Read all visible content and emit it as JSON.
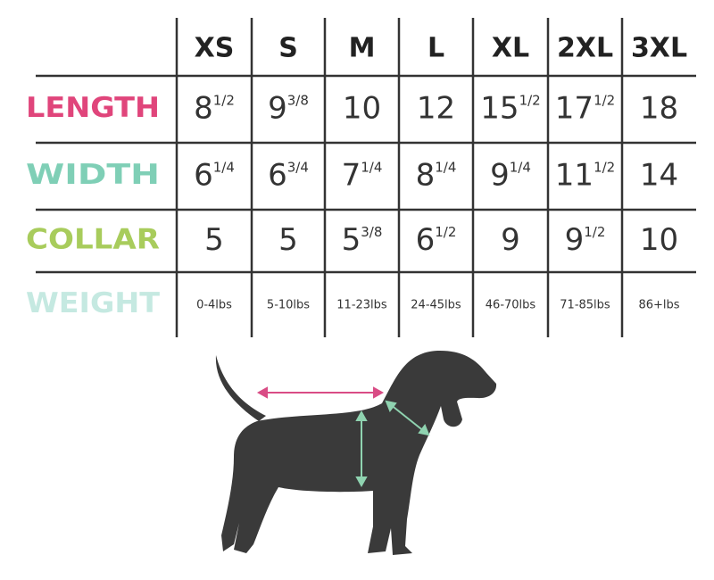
{
  "table": {
    "columns": [
      "XS",
      "S",
      "M",
      "L",
      "XL",
      "2XL",
      "3XL"
    ],
    "rows": [
      {
        "label": "LENGTH",
        "color": "#e0457b",
        "cells": [
          [
            "8",
            "1/2"
          ],
          [
            "9",
            "3/8"
          ],
          [
            "10"
          ],
          [
            "12"
          ],
          [
            "15",
            "1/2"
          ],
          [
            "17",
            "1/2"
          ],
          [
            "18"
          ]
        ]
      },
      {
        "label": "WIDTH",
        "color": "#7fcfb6",
        "cells": [
          [
            "6",
            "1/4"
          ],
          [
            "6",
            "3/4"
          ],
          [
            "7",
            "1/4"
          ],
          [
            "8",
            "1/4"
          ],
          [
            "9",
            "1/4"
          ],
          [
            "11",
            "1/2"
          ],
          [
            "14"
          ]
        ]
      },
      {
        "label": "COLLAR",
        "color": "#a8cc5c",
        "cells": [
          [
            "5"
          ],
          [
            "5"
          ],
          [
            "5",
            "3/8"
          ],
          [
            "6",
            "1/2"
          ],
          [
            "9"
          ],
          [
            "9",
            "1/2"
          ],
          [
            "10"
          ]
        ]
      },
      {
        "label": "WEIGHT",
        "color": "#c5e9e1",
        "cells": [
          [
            "0-4lbs"
          ],
          [
            "5-10lbs"
          ],
          [
            "11-23lbs"
          ],
          [
            "24-45lbs"
          ],
          [
            "46-70lbs"
          ],
          [
            "71-85lbs"
          ],
          [
            "86+lbs"
          ]
        ]
      }
    ]
  }
}
